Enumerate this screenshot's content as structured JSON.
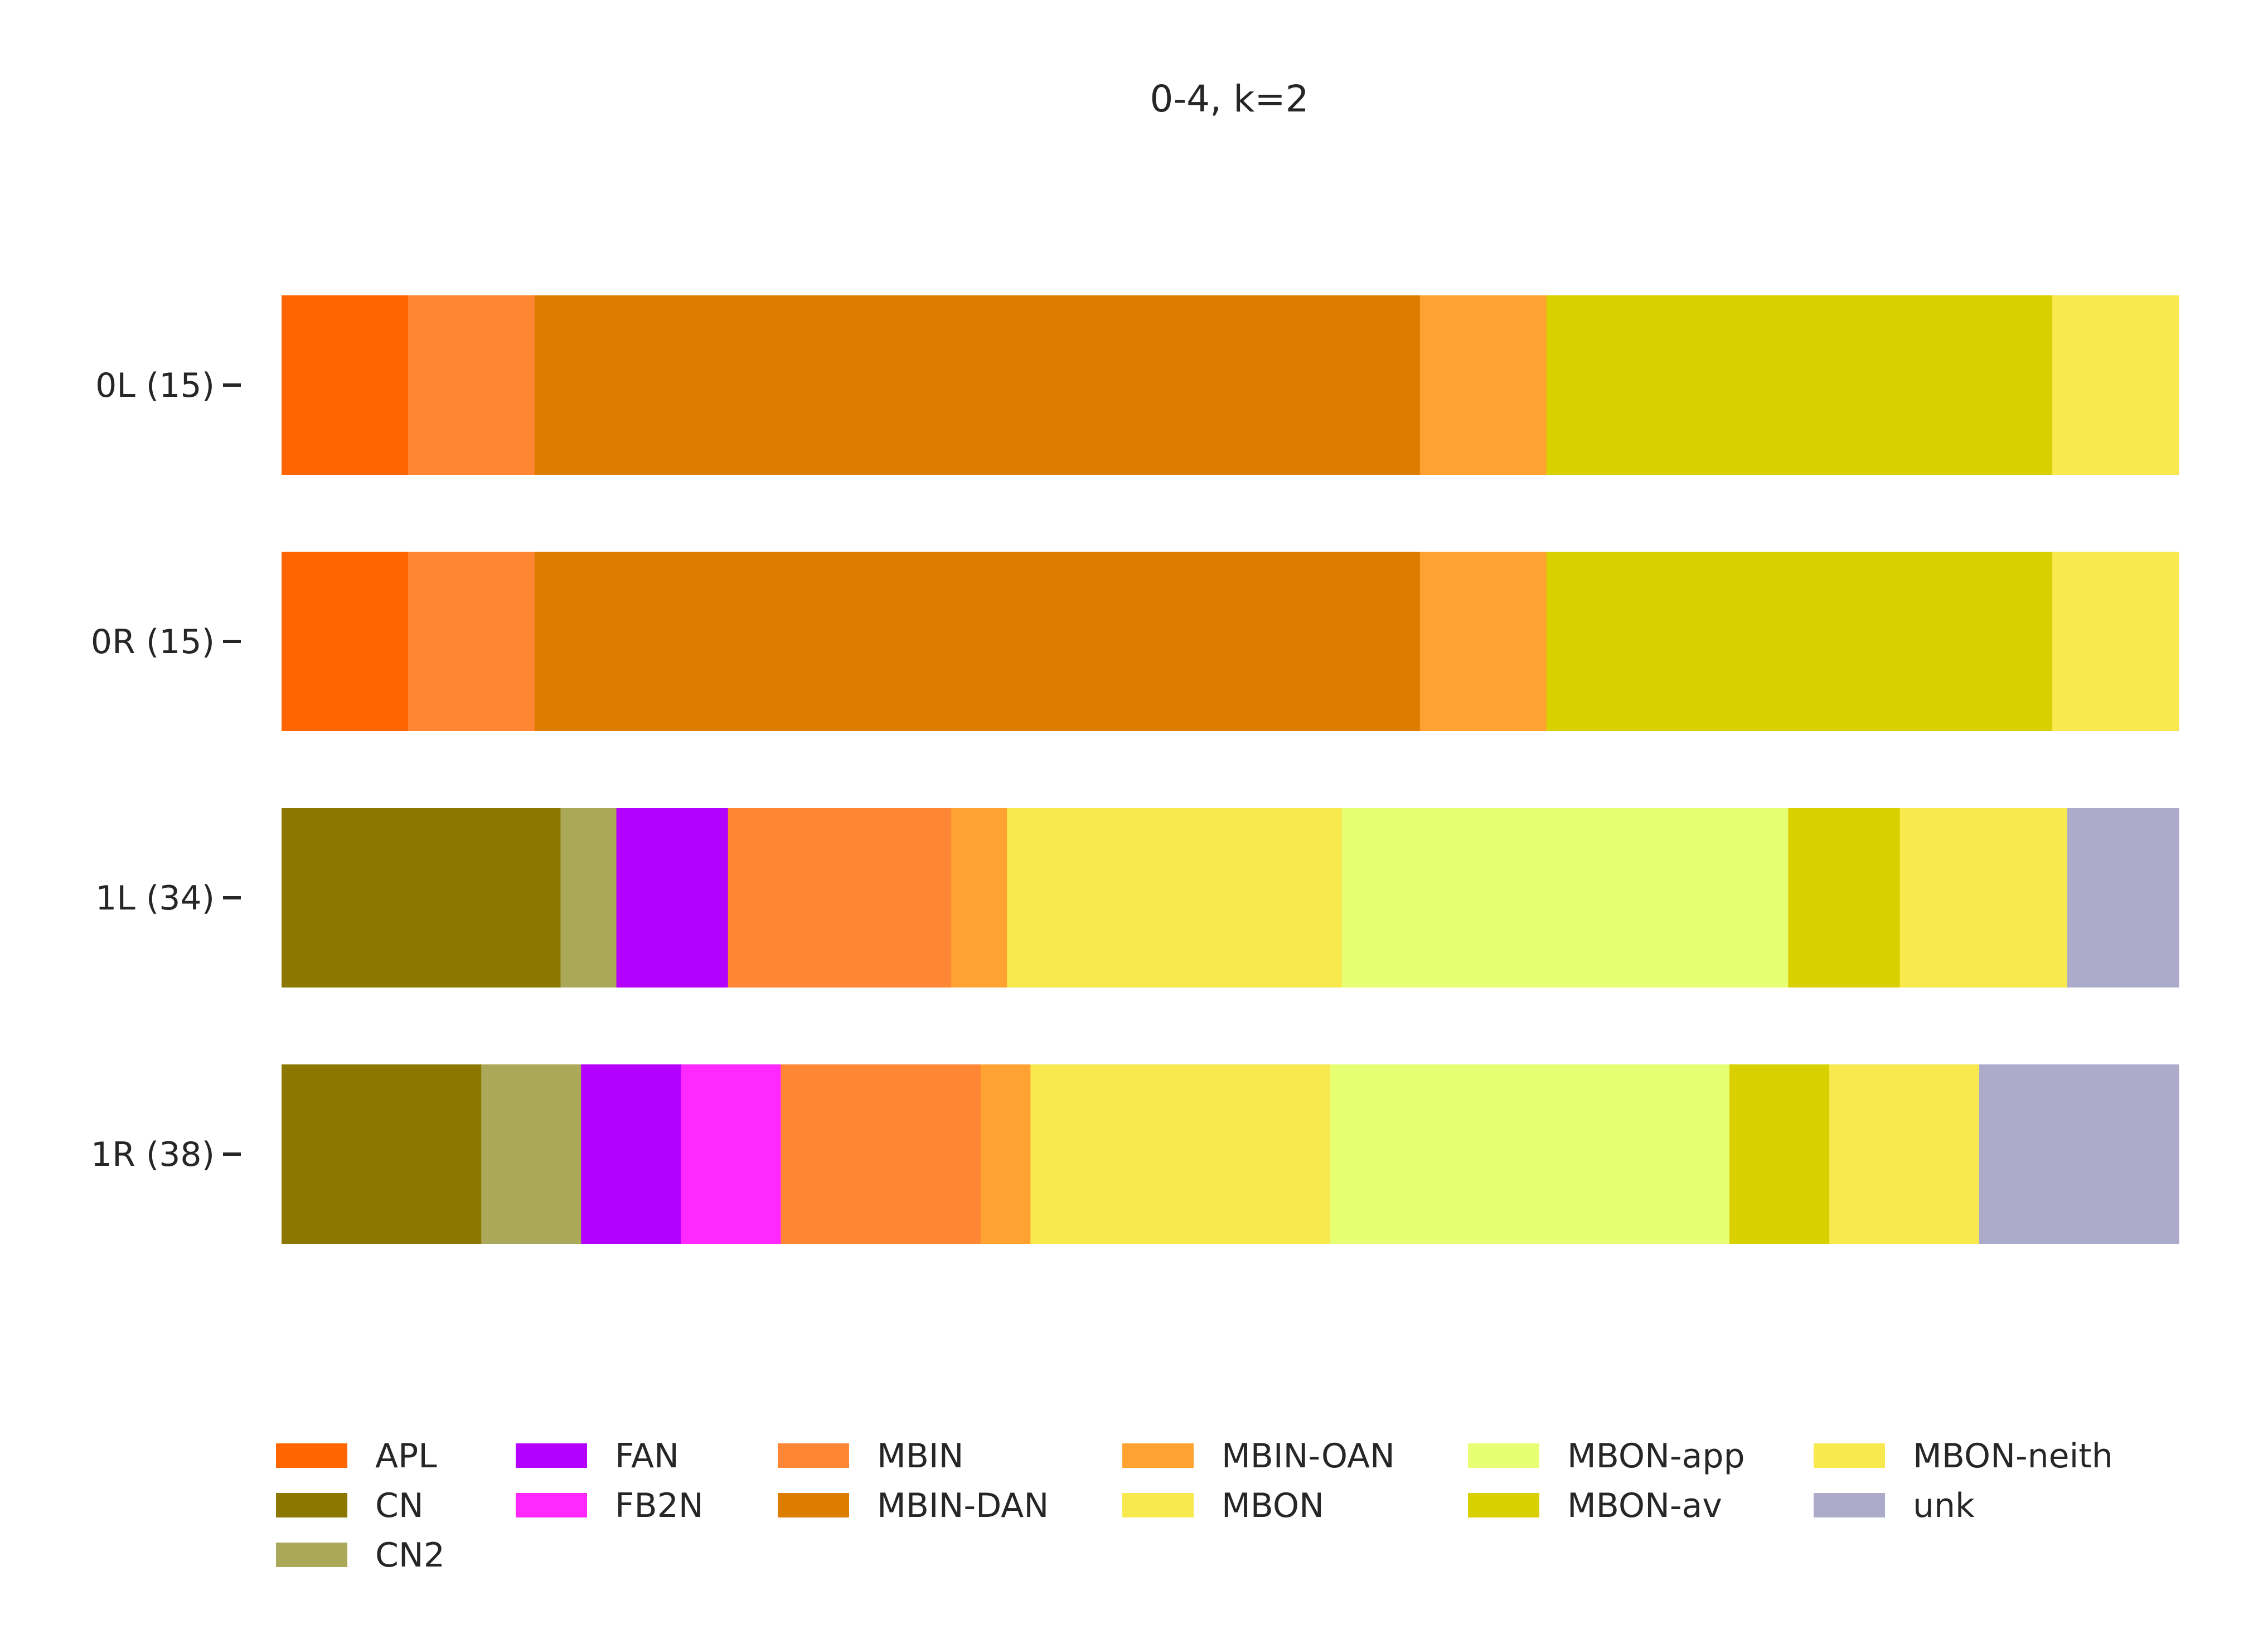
{
  "chart_data": {
    "type": "bar",
    "orientation": "horizontal",
    "stacked": true,
    "normalized": true,
    "title": "0-4, k=2",
    "xlabel": "",
    "ylabel": "",
    "grid": false,
    "legend_position": "bottom",
    "categories": [
      "0L (15)",
      "0R (15)",
      "1L (34)",
      "1R (38)"
    ],
    "series": [
      {
        "name": "APL",
        "color": "#ff6500",
        "values": [
          1,
          1,
          0,
          0
        ]
      },
      {
        "name": "CN",
        "color": "#8c7800",
        "values": [
          0,
          0,
          5,
          4
        ]
      },
      {
        "name": "CN2",
        "color": "#aba85a",
        "values": [
          0,
          0,
          1,
          2
        ]
      },
      {
        "name": "FAN",
        "color": "#b400ff",
        "values": [
          0,
          0,
          2,
          2
        ]
      },
      {
        "name": "FB2N",
        "color": "#ff28ff",
        "values": [
          0,
          0,
          0,
          2
        ]
      },
      {
        "name": "MBIN",
        "color": "#ff8634",
        "values": [
          1,
          1,
          4,
          4
        ]
      },
      {
        "name": "MBIN-DAN",
        "color": "#dc7d00",
        "values": [
          7,
          7,
          0,
          0
        ]
      },
      {
        "name": "MBIN-OAN",
        "color": "#ffa232",
        "values": [
          1,
          1,
          1,
          1
        ]
      },
      {
        "name": "MBON",
        "color": "#f8e94e",
        "values": [
          0,
          0,
          6,
          6
        ]
      },
      {
        "name": "MBON-app",
        "color": "#e7ff73",
        "values": [
          0,
          0,
          8,
          8
        ]
      },
      {
        "name": "MBON-av",
        "color": "#d8d000",
        "values": [
          4,
          4,
          2,
          2
        ]
      },
      {
        "name": "MBON-neith",
        "color": "#f8e94e",
        "values": [
          1,
          1,
          3,
          3
        ]
      },
      {
        "name": "unk",
        "color": "#adabca",
        "values": [
          0,
          0,
          2,
          4
        ]
      }
    ],
    "legend": [
      "APL",
      "FAN",
      "MBIN",
      "MBIN-OAN",
      "MBON-app",
      "MBON-neith",
      "CN",
      "FB2N",
      "MBIN-DAN",
      "MBON",
      "MBON-av",
      "unk",
      "CN2"
    ]
  }
}
